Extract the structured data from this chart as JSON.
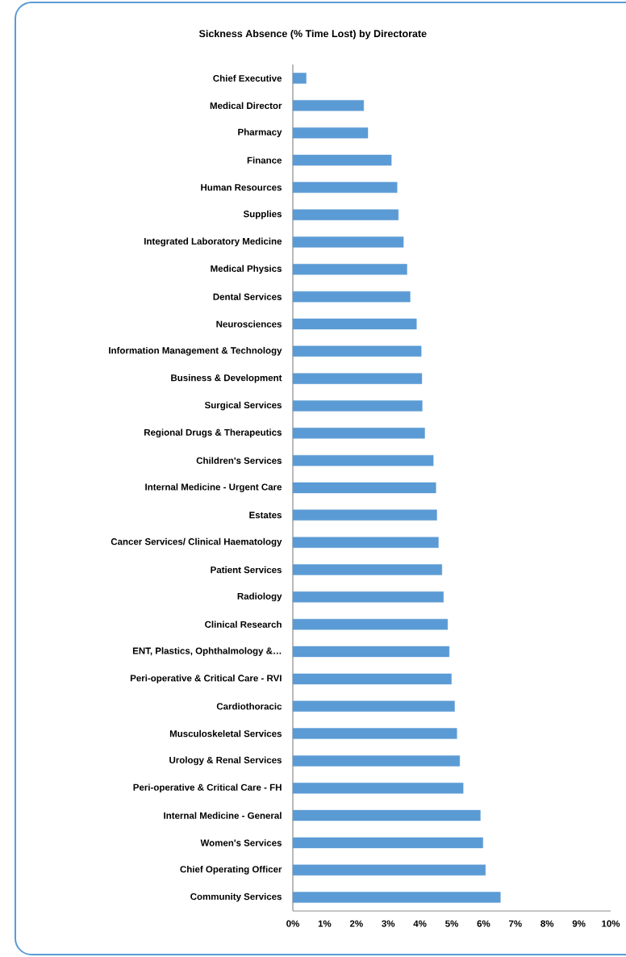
{
  "chart_data": {
    "type": "bar",
    "orientation": "horizontal",
    "title": "Sickness Absence (% Time Lost) by Directorate",
    "categories": [
      "Chief Executive",
      "Medical Director",
      "Pharmacy",
      "Finance",
      "Human Resources",
      "Supplies",
      "Integrated Laboratory Medicine",
      "Medical Physics",
      "Dental Services",
      "Neurosciences",
      "Information Management & Technology",
      "Business & Development",
      "Surgical Services",
      "Regional Drugs & Therapeutics",
      "Children's Services",
      "Internal Medicine - Urgent Care",
      "Estates",
      "Cancer Services/ Clinical Haematology",
      "Patient Services",
      "Radiology",
      "Clinical Research",
      "ENT, Plastics, Ophthalmology &…",
      "Peri-operative & Critical Care - RVI",
      "Cardiothoracic",
      "Musculoskeletal Services",
      "Urology & Renal Services",
      "Peri-operative & Critical Care - FH",
      "Internal Medicine - General",
      "Women's Services",
      "Chief Operating Officer",
      "Community Services"
    ],
    "values": [
      0.42,
      2.23,
      2.36,
      3.1,
      3.28,
      3.32,
      3.48,
      3.59,
      3.69,
      3.89,
      4.04,
      4.06,
      4.07,
      4.15,
      4.42,
      4.5,
      4.53,
      4.58,
      4.69,
      4.74,
      4.87,
      4.92,
      4.99,
      5.09,
      5.16,
      5.25,
      5.36,
      5.9,
      5.98,
      6.06,
      6.53
    ],
    "color": "#5b9bd5",
    "xlim": [
      0,
      10
    ],
    "xticks": [
      {
        "value": 0,
        "label": "0%"
      },
      {
        "value": 1,
        "label": "1%"
      },
      {
        "value": 2,
        "label": "2%"
      },
      {
        "value": 3,
        "label": "3%"
      },
      {
        "value": 4,
        "label": "4%"
      },
      {
        "value": 5,
        "label": "5%"
      },
      {
        "value": 6,
        "label": "6%"
      },
      {
        "value": 7,
        "label": "7%"
      },
      {
        "value": 8,
        "label": "8%"
      },
      {
        "value": 9,
        "label": "9%"
      },
      {
        "value": 10,
        "label": "10%"
      }
    ]
  }
}
